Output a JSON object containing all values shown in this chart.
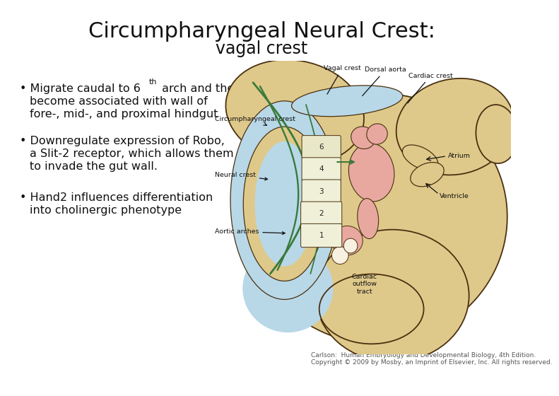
{
  "title": "Circumpharyngeal Neural Crest:",
  "subtitle": "vagal crest",
  "caption1": "Carlson:  Human Embryology and Developmental Biology, 4th Edition.",
  "caption2": "Copyright © 2009 by Mosby, an Imprint of Elsevier, Inc. All rights reserved.",
  "bg_color": "#ffffff",
  "title_color": "#111111",
  "text_color": "#111111",
  "title_fontsize": 22,
  "subtitle_fontsize": 17,
  "bullet_fontsize": 11.5,
  "caption_fontsize": 6.5,
  "diagram_tan": "#dfc98a",
  "diagram_blue": "#b8d8e8",
  "diagram_green": "#3a7a3a",
  "diagram_pink": "#e8a8a0",
  "diagram_outline": "#4a3010",
  "diagram_dark_tan": "#c8a860",
  "label_color": "#111111",
  "label_fs": 6.8
}
